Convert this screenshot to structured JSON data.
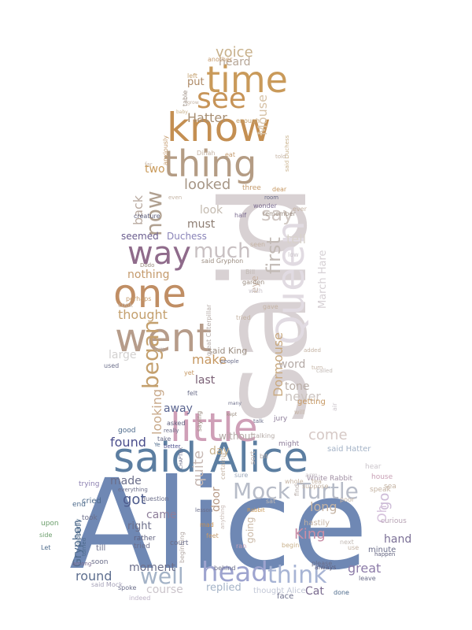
{
  "words": [
    {
      "t": "Alice",
      "c": "#6f88b4"
    },
    {
      "t": "said",
      "c": "#d8d1d3"
    },
    {
      "t": "said Alice",
      "c": "#5c7ea1"
    },
    {
      "t": "little",
      "c": "#cf9fb7"
    },
    {
      "t": "went",
      "c": "#b69c8a"
    },
    {
      "t": "one",
      "c": "#c08e64"
    },
    {
      "t": "know",
      "c": "#c48f52"
    },
    {
      "t": "thing",
      "c": "#b49c84"
    },
    {
      "t": "time",
      "c": "#c99a5a"
    },
    {
      "t": "see",
      "c": "#c79458"
    },
    {
      "t": "way",
      "c": "#8f6b8b"
    },
    {
      "t": "Queen",
      "c": "#e1dbe2"
    },
    {
      "t": "head",
      "c": "#9ea4cf"
    },
    {
      "t": "Mock Turtle",
      "c": "#b7bcc8"
    },
    {
      "t": "think",
      "c": "#a7b4d4"
    },
    {
      "t": "much",
      "c": "#c8c0c2"
    },
    {
      "t": "began",
      "c": "#c4a06e"
    },
    {
      "t": "now",
      "c": "#b0a090"
    },
    {
      "t": "well",
      "c": "#a4b3c7"
    },
    {
      "t": "first",
      "c": "#c2bab5"
    },
    {
      "t": "say",
      "c": "#cfc6c1"
    },
    {
      "t": "voice",
      "c": "#c8b18b"
    },
    {
      "t": "Hatter",
      "c": "#a88f73"
    },
    {
      "t": "heard",
      "c": "#b6a697"
    },
    {
      "t": "put",
      "c": "#ad8965"
    },
    {
      "t": "Mouse",
      "c": "#d7c3a8"
    },
    {
      "t": "looked",
      "c": "#a69686"
    },
    {
      "t": "two",
      "c": "#c99a5a"
    },
    {
      "t": "must",
      "c": "#8d7d72"
    },
    {
      "t": "look",
      "c": "#c4bbb0"
    },
    {
      "t": "tell",
      "c": "#d8d2cb"
    },
    {
      "t": "back",
      "c": "#b9aaa0"
    },
    {
      "t": "seemed",
      "c": "#6b5e8f"
    },
    {
      "t": "Duchess",
      "c": "#8a84b8"
    },
    {
      "t": "nothing",
      "c": "#c49a6c"
    },
    {
      "t": "thought",
      "c": "#c4a06e"
    },
    {
      "t": "never",
      "c": "#ccc4c0"
    },
    {
      "t": "March Hare",
      "c": "#d6d0d4"
    },
    {
      "t": "Dormouse",
      "c": "#c9a97f"
    },
    {
      "t": "large",
      "c": "#d3d1d0"
    },
    {
      "t": "make",
      "c": "#c69862"
    },
    {
      "t": "said King",
      "c": "#9a8c80"
    },
    {
      "t": "last",
      "c": "#7a5f75"
    },
    {
      "t": "word",
      "c": "#b4aaa6"
    },
    {
      "t": "tone",
      "c": "#b8ada6"
    },
    {
      "t": "looking",
      "c": "#c8a98a"
    },
    {
      "t": "away",
      "c": "#5b6590"
    },
    {
      "t": "come",
      "c": "#d6c9c6"
    },
    {
      "t": "found",
      "c": "#4b4e8c"
    },
    {
      "t": "got",
      "c": "#4d5b8c"
    },
    {
      "t": "made",
      "c": "#6b6e8a"
    },
    {
      "t": "came",
      "c": "#8e7e9a"
    },
    {
      "t": "right",
      "c": "#6b6e8a"
    },
    {
      "t": "quite",
      "c": "#c7b9b4"
    },
    {
      "t": "day",
      "c": "#c8b18b"
    },
    {
      "t": "long",
      "c": "#c4b3a3"
    },
    {
      "t": "King",
      "c": "#c88ea6"
    },
    {
      "t": "hand",
      "c": "#7b7096"
    },
    {
      "t": "great",
      "c": "#8c7ba8"
    },
    {
      "t": "round",
      "c": "#5e6f8f"
    },
    {
      "t": "moment",
      "c": "#6b6e8a"
    },
    {
      "t": "course",
      "c": "#cbc5cb"
    },
    {
      "t": "replied",
      "c": "#a4b3c7"
    },
    {
      "t": "Cat",
      "c": "#7a6b8f"
    },
    {
      "t": "Gryphon",
      "c": "#4e6b8c"
    },
    {
      "t": "go",
      "c": "#cdbbd7"
    },
    {
      "t": "Oh",
      "c": "#d6c2dc"
    },
    {
      "t": "door",
      "c": "#b79a86"
    },
    {
      "t": "going",
      "c": "#cab8a6"
    },
    {
      "t": "without",
      "c": "#b4aaa6"
    },
    {
      "t": "sure",
      "c": "#9aa6b8"
    },
    {
      "t": "half",
      "c": "#7a6b8f"
    },
    {
      "t": "eye",
      "c": "#c9b5a6"
    },
    {
      "t": "find",
      "c": "#b4aaa6"
    },
    {
      "t": "minute",
      "c": "#6b6e8a"
    },
    {
      "t": "hastily",
      "c": "#c4b3a3"
    },
    {
      "t": "curious",
      "c": "#b7a3b4"
    },
    {
      "t": "house",
      "c": "#c8a0b5"
    },
    {
      "t": "White Rabbit",
      "c": "#a08fa3"
    },
    {
      "t": "cried",
      "c": "#4e6b8c"
    },
    {
      "t": "took",
      "c": "#6b6e8a"
    },
    {
      "t": "till",
      "c": "#6b6e8a"
    },
    {
      "t": "soon",
      "c": "#6b6e8a"
    },
    {
      "t": "rather",
      "c": "#5e5f7d"
    },
    {
      "t": "tried",
      "c": "#6b6e8a"
    },
    {
      "t": "question",
      "c": "#6b6e8a"
    },
    {
      "t": "trying",
      "c": "#8b7fb0"
    },
    {
      "t": "end",
      "c": "#4e6b8c"
    },
    {
      "t": "upon",
      "c": "#6b9e6b"
    },
    {
      "t": "side",
      "c": "#6b9e6b"
    },
    {
      "t": "Let",
      "c": "#4e6b8c"
    },
    {
      "t": "spoke",
      "c": "#6b6e8a"
    },
    {
      "t": "indeed",
      "c": "#bdb3c7"
    },
    {
      "t": "said Mock",
      "c": "#a6a2b8"
    },
    {
      "t": "suddenly",
      "c": "#4e6b8c"
    },
    {
      "t": "among",
      "c": "#7a6b8f"
    },
    {
      "t": "everything",
      "c": "#6b6e8a"
    },
    {
      "t": "good",
      "c": "#4e6b8c"
    },
    {
      "t": "take",
      "c": "#6b6e8a"
    },
    {
      "t": "asked",
      "c": "#5e5f7d"
    },
    {
      "t": "really",
      "c": "#6b6e8a"
    },
    {
      "t": "better",
      "c": "#4b4e8c"
    },
    {
      "t": "felt",
      "c": "#6b6e8a"
    },
    {
      "t": "yet",
      "c": "#c69862"
    },
    {
      "t": "kept",
      "c": "#9a8c80"
    },
    {
      "t": "saying",
      "c": "#9a8c80"
    },
    {
      "t": "talking",
      "c": "#b4aaa6"
    },
    {
      "t": "talk",
      "c": "#6b6e8a"
    },
    {
      "t": "jury",
      "c": "#8e7e9a"
    },
    {
      "t": "might",
      "c": "#8e7e9a"
    },
    {
      "t": "getting",
      "c": "#c69862"
    },
    {
      "t": "said Hatter",
      "c": "#a4b3c7"
    },
    {
      "t": "many",
      "c": "#6b6e8a"
    },
    {
      "t": "bit",
      "c": "#b4aaa6"
    },
    {
      "t": "sort",
      "c": "#c7b9b4"
    },
    {
      "t": "sat",
      "c": "#c2bab5"
    },
    {
      "t": "Rabbit",
      "c": "#c99a5a"
    },
    {
      "t": "lesson",
      "c": "#6b6e8a"
    },
    {
      "t": "certainly",
      "c": "#c4b3a3"
    },
    {
      "t": "mad",
      "c": "#c48f52"
    },
    {
      "t": "feet",
      "c": "#c49a6c"
    },
    {
      "t": "ran",
      "c": "#c8a0b5"
    },
    {
      "t": "anything",
      "c": "#c7b9b4"
    },
    {
      "t": "beginning",
      "c": "#b4aaa6"
    },
    {
      "t": "court",
      "c": "#6b6e8a"
    },
    {
      "t": "behind",
      "c": "#6b6e8a"
    },
    {
      "t": "thought Alice",
      "c": "#c2c7d6"
    },
    {
      "t": "face",
      "c": "#6b6e8a"
    },
    {
      "t": "done",
      "c": "#4e6b8c"
    },
    {
      "t": "always",
      "c": "#5e5f7d"
    },
    {
      "t": "please",
      "c": "#6b6e8a"
    },
    {
      "t": "happen",
      "c": "#5e5f7d"
    },
    {
      "t": "leave",
      "c": "#6b6e8a"
    },
    {
      "t": "begin",
      "c": "#c8b18b"
    },
    {
      "t": "next",
      "c": "#c2bab5"
    },
    {
      "t": "use",
      "c": "#c4b3a3"
    },
    {
      "t": "Ye",
      "c": "#4e6b8c"
    },
    {
      "t": "CHAPTER",
      "c": "#6b6e8a"
    },
    {
      "t": "said Gryphon",
      "c": "#9a8c80"
    },
    {
      "t": "garden",
      "c": "#9a8c80"
    },
    {
      "t": "gave",
      "c": "#c4b3a3"
    },
    {
      "t": "wish",
      "c": "#cbc5cb"
    },
    {
      "t": "Bill",
      "c": "#c2bab5"
    },
    {
      "t": "great Caterpillar",
      "c": "#b4aaa6"
    },
    {
      "t": "cook",
      "c": "#c4b3a3"
    },
    {
      "t": "perhaps",
      "c": "#c49a6c"
    },
    {
      "t": "Dodo",
      "c": "#9a8c80"
    },
    {
      "t": "creature",
      "c": "#5e5f7d"
    },
    {
      "t": "even",
      "c": "#c4b3a3"
    },
    {
      "t": "remember",
      "c": "#9a8c80"
    },
    {
      "t": "wonder",
      "c": "#7a6b8f"
    },
    {
      "t": "room",
      "c": "#6b6e8a"
    },
    {
      "t": "dear",
      "c": "#c69862"
    },
    {
      "t": "three",
      "c": "#c49a6c"
    },
    {
      "t": "anxiously",
      "c": "#c49a6c"
    },
    {
      "t": "eat",
      "c": "#c49a6c"
    },
    {
      "t": "Dinah",
      "c": "#c4b3a3"
    },
    {
      "t": "enough",
      "c": "#c4a06e"
    },
    {
      "t": "another",
      "c": "#c49a6c"
    },
    {
      "t": "left",
      "c": "#c4a06e"
    },
    {
      "t": "table",
      "c": "#9a8c80"
    },
    {
      "t": "grow",
      "c": "#c4b3a3"
    },
    {
      "t": "baby",
      "c": "#c8b18b"
    },
    {
      "t": "said Duchess",
      "c": "#c8b18b"
    },
    {
      "t": "turned",
      "c": "#4e6b8c"
    },
    {
      "t": "people",
      "c": "#6b6e8a"
    },
    {
      "t": "still",
      "c": "#b4aaa6"
    },
    {
      "t": "used",
      "c": "#6b6e8a"
    },
    {
      "t": "called",
      "c": "#c2bab5"
    },
    {
      "t": "added",
      "c": "#c4b3a3"
    },
    {
      "t": "turn",
      "c": "#c4b3a3"
    },
    {
      "t": "seen",
      "c": "#c4b3a3"
    },
    {
      "t": "low",
      "c": "#cbc5cb"
    },
    {
      "t": "hear",
      "c": "#cbc5cb"
    },
    {
      "t": "air",
      "c": "#cbc5cb"
    },
    {
      "t": "arm",
      "c": "#cbc5cb"
    },
    {
      "t": "speak",
      "c": "#c4b3a3"
    },
    {
      "t": "sea",
      "c": "#c4b3a3"
    },
    {
      "t": "tea",
      "c": "#c4b3a3"
    },
    {
      "t": "suppose",
      "c": "#c4b3a3"
    },
    {
      "t": "poor",
      "c": "#c4b3a3"
    },
    {
      "t": "will",
      "c": "#c4b3a3"
    },
    {
      "t": "whole",
      "c": "#c4b3a3"
    },
    {
      "t": "ever",
      "c": "#c4b3a3"
    },
    {
      "t": "told",
      "c": "#c4b3a3"
    },
    {
      "t": "far",
      "c": "#c4b3a3"
    },
    {
      "t": "tried",
      "c": "#c4b3a3"
    }
  ]
}
